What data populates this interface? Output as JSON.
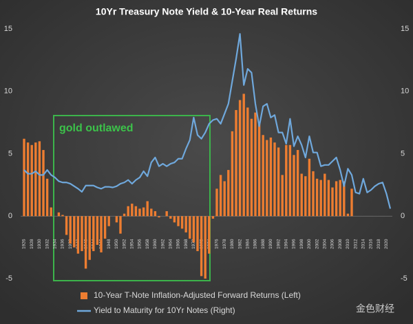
{
  "chart_data": {
    "type": "bar-line",
    "title": "10Yr Treasury Note Yield & 10-Year  Real Returns",
    "annotation": "gold outlawed",
    "watermark": "金色财经",
    "categories": [
      "1926",
      null,
      "1928",
      null,
      "1930",
      null,
      "1932",
      null,
      "1934",
      null,
      "1936",
      null,
      "1938",
      null,
      "1940",
      null,
      "1942",
      null,
      "1944",
      null,
      "1946",
      null,
      "1948",
      null,
      "1950",
      null,
      "1952",
      null,
      "1954",
      null,
      "1956",
      null,
      "1958",
      null,
      "1960",
      null,
      "1962",
      null,
      "1964",
      null,
      "1966",
      null,
      "1968",
      null,
      "1970",
      null,
      "1972",
      null,
      "1974",
      null,
      "1976",
      null,
      "1978",
      null,
      "1980",
      null,
      "1982",
      null,
      "1984",
      null,
      "1986",
      null,
      "1988",
      null,
      "1990",
      null,
      "1992",
      null,
      "1994",
      null,
      "1996",
      null,
      "1998",
      null,
      "2000",
      null,
      "2002",
      null,
      "2004",
      null,
      "2006",
      null,
      "2008",
      null,
      "2010",
      null,
      "2012",
      null,
      "2014",
      null,
      "2016",
      null,
      "2018",
      null,
      "2020",
      null
    ],
    "series": [
      {
        "name": "10-Year T-Note Inflation-Adjusted Forward Returns (Left)",
        "color": "#ed7d31",
        "kind": "bar",
        "values": [
          6.2,
          5.9,
          5.7,
          5.9,
          6.0,
          5.3,
          3.0,
          0.7,
          0,
          0.3,
          0.1,
          -1.5,
          -2.2,
          -2.5,
          -3.0,
          -2.8,
          -4.2,
          -3.5,
          -2.8,
          -2.3,
          -2.9,
          -1.8,
          -0.8,
          0,
          -0.5,
          -1.4,
          0.2,
          0.8,
          1.0,
          0.8,
          0.6,
          0.7,
          1.2,
          0.6,
          0.4,
          -0.1,
          0,
          0.4,
          -0.2,
          -0.5,
          -0.8,
          -1.0,
          -1.3,
          -1.8,
          -2.1,
          -2.8,
          -4.8,
          -5.0,
          -3.0,
          -0.2,
          2.2,
          3.3,
          2.8,
          3.7,
          6.8,
          8.5,
          9.3,
          9.8,
          8.7,
          7.8,
          8.3,
          7.4,
          6.5,
          6.1,
          6.3,
          5.9,
          5.5,
          3.3,
          5.7,
          5.7,
          4.9,
          5.3,
          3.4,
          3.2,
          4.6,
          3.6,
          3.0,
          2.9,
          3.4,
          2.9,
          2.3,
          2.8,
          2.9,
          2.8,
          0.2,
          2.2,
          null,
          null,
          null,
          null,
          null,
          null,
          null,
          null,
          null,
          null
        ]
      },
      {
        "name": "Yield to Maturity for 10Yr Notes (Right)",
        "color": "#6fa8dc",
        "kind": "line",
        "axis": "y2",
        "values": [
          3.7,
          3.4,
          3.4,
          3.6,
          3.3,
          3.3,
          3.7,
          3.3,
          3.1,
          2.8,
          2.7,
          2.7,
          2.6,
          2.4,
          2.2,
          1.95,
          2.45,
          2.45,
          2.45,
          2.3,
          2.2,
          2.35,
          2.35,
          2.3,
          2.4,
          2.6,
          2.7,
          2.9,
          2.6,
          2.9,
          3.1,
          3.6,
          3.2,
          4.3,
          4.7,
          4.0,
          4.2,
          4.0,
          4.2,
          4.3,
          4.6,
          4.6,
          5.4,
          6.1,
          7.9,
          6.5,
          6.2,
          6.7,
          7.4,
          7.7,
          7.8,
          7.4,
          8.2,
          9.0,
          10.8,
          12.6,
          14.6,
          10.5,
          11.8,
          11.5,
          9.0,
          7.2,
          8.8,
          9.0,
          7.9,
          8.1,
          6.7,
          6.7,
          5.8,
          7.8,
          5.6,
          6.4,
          5.7,
          4.7,
          6.4,
          5.1,
          5.1,
          4.0,
          4.1,
          4.1,
          4.4,
          4.7,
          3.7,
          2.4,
          3.8,
          3.3,
          1.9,
          1.8,
          3.0,
          1.9,
          2.1,
          2.4,
          2.6,
          2.7,
          1.8,
          0.6
        ]
      }
    ],
    "ylim": [
      -5,
      15
    ],
    "yticks": [
      -5,
      0,
      5,
      10,
      15
    ],
    "y2lim": [
      -5,
      15
    ],
    "y2ticks": [
      -5,
      0,
      5,
      10,
      15
    ]
  }
}
